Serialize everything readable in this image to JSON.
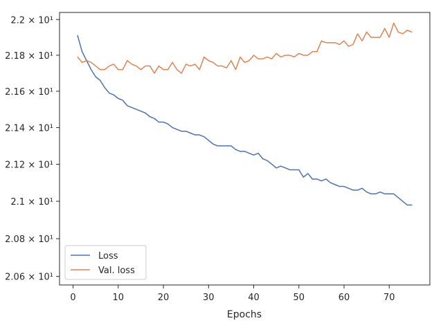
{
  "chart_data": {
    "type": "line",
    "title": "",
    "xlabel": "Epochs",
    "ylabel": "",
    "xlim": [
      -3,
      79
    ],
    "ylim": [
      20.555,
      22.04
    ],
    "y_scale": "log",
    "grid": false,
    "legend_position": "lower-left",
    "x_ticks": [
      0,
      10,
      20,
      30,
      40,
      50,
      60,
      70
    ],
    "x_tick_labels": [
      "0",
      "10",
      "20",
      "30",
      "40",
      "50",
      "60",
      "70"
    ],
    "y_ticks": [
      20.6,
      20.8,
      21.0,
      21.2,
      21.4,
      21.6,
      21.8,
      22.0
    ],
    "y_tick_labels": [
      "2.06 × 10¹",
      "2.08 × 10¹",
      "2.1 × 10¹",
      "2.12 × 10¹",
      "2.14 × 10¹",
      "2.16 × 10¹",
      "2.18 × 10¹",
      "2.2 × 10¹"
    ],
    "x": [
      1,
      2,
      3,
      4,
      5,
      6,
      7,
      8,
      9,
      10,
      11,
      12,
      13,
      14,
      15,
      16,
      17,
      18,
      19,
      20,
      21,
      22,
      23,
      24,
      25,
      26,
      27,
      28,
      29,
      30,
      31,
      32,
      33,
      34,
      35,
      36,
      37,
      38,
      39,
      40,
      41,
      42,
      43,
      44,
      45,
      46,
      47,
      48,
      49,
      50,
      51,
      52,
      53,
      54,
      55,
      56,
      57,
      58,
      59,
      60,
      61,
      62,
      63,
      64,
      65,
      66,
      67,
      68,
      69,
      70,
      71,
      72,
      73,
      74,
      75
    ],
    "series": [
      {
        "name": "Loss",
        "color": "#4c72b0",
        "values": [
          21.91,
          21.82,
          21.77,
          21.72,
          21.68,
          21.66,
          21.62,
          21.59,
          21.58,
          21.56,
          21.55,
          21.52,
          21.51,
          21.5,
          21.49,
          21.48,
          21.46,
          21.45,
          21.43,
          21.43,
          21.42,
          21.4,
          21.39,
          21.38,
          21.38,
          21.37,
          21.36,
          21.36,
          21.35,
          21.33,
          21.31,
          21.3,
          21.3,
          21.3,
          21.3,
          21.28,
          21.27,
          21.27,
          21.26,
          21.25,
          21.26,
          21.23,
          21.22,
          21.2,
          21.18,
          21.19,
          21.18,
          21.17,
          21.17,
          21.17,
          21.13,
          21.15,
          21.12,
          21.12,
          21.11,
          21.12,
          21.1,
          21.09,
          21.08,
          21.08,
          21.07,
          21.06,
          21.06,
          21.07,
          21.05,
          21.04,
          21.04,
          21.05,
          21.04,
          21.04,
          21.04,
          21.02,
          21.0,
          20.98,
          20.98
        ]
      },
      {
        "name": "Val. loss",
        "color": "#dd8452",
        "values": [
          21.79,
          21.76,
          21.77,
          21.76,
          21.74,
          21.72,
          21.72,
          21.74,
          21.75,
          21.72,
          21.72,
          21.77,
          21.75,
          21.74,
          21.72,
          21.74,
          21.74,
          21.7,
          21.74,
          21.72,
          21.72,
          21.76,
          21.72,
          21.7,
          21.75,
          21.74,
          21.75,
          21.72,
          21.79,
          21.77,
          21.76,
          21.74,
          21.74,
          21.73,
          21.77,
          21.72,
          21.79,
          21.76,
          21.77,
          21.8,
          21.78,
          21.78,
          21.79,
          21.78,
          21.81,
          21.79,
          21.8,
          21.8,
          21.79,
          21.81,
          21.8,
          21.8,
          21.82,
          21.82,
          21.88,
          21.87,
          21.87,
          21.87,
          21.86,
          21.88,
          21.85,
          21.86,
          21.92,
          21.88,
          21.93,
          21.9,
          21.9,
          21.9,
          21.95,
          21.9,
          21.98,
          21.93,
          21.92,
          21.94,
          21.93
        ]
      }
    ]
  }
}
